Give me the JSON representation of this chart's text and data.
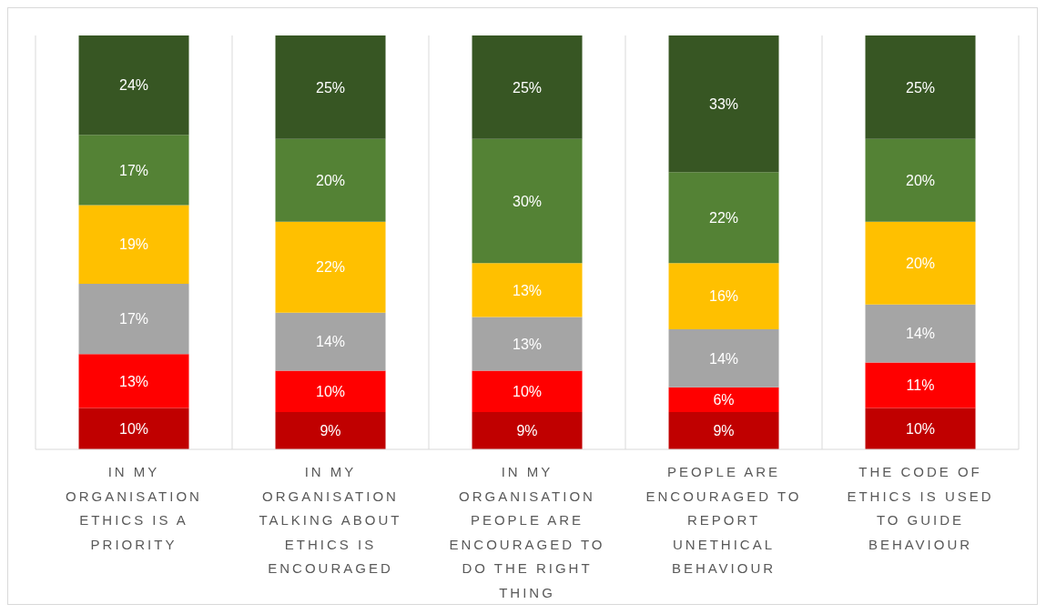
{
  "chart_data": {
    "type": "bar",
    "stacked": true,
    "grid": "x",
    "categories": [
      "IN MY ORGANISATION ETHICS IS A PRIORITY",
      "IN MY ORGANISATION TALKING ABOUT ETHICS IS ENCOURAGED",
      "IN MY ORGANISATION PEOPLE ARE ENCOURAGED TO DO THE RIGHT THING",
      "PEOPLE ARE ENCOURAGED TO REPORT UNETHICAL BEHAVIOUR",
      "THE CODE OF ETHICS IS USED TO GUIDE BEHAVIOUR"
    ],
    "series": [
      {
        "color": "#c00000",
        "values": [
          10,
          9,
          9,
          9,
          10
        ],
        "value_labels": [
          "10%",
          "9%",
          "9%",
          "9%",
          "10%"
        ]
      },
      {
        "color": "#ff0000",
        "values": [
          13,
          10,
          10,
          6,
          11
        ],
        "value_labels": [
          "13%",
          "10%",
          "10%",
          "6%",
          "11%"
        ]
      },
      {
        "color": "#a5a5a5",
        "values": [
          17,
          14,
          13,
          14,
          14
        ],
        "value_labels": [
          "17%",
          "14%",
          "13%",
          "14%",
          "14%"
        ]
      },
      {
        "color": "#ffc000",
        "values": [
          19,
          22,
          13,
          16,
          20
        ],
        "value_labels": [
          "19%",
          "22%",
          "13%",
          "16%",
          "20%"
        ]
      },
      {
        "color": "#548235",
        "values": [
          17,
          20,
          30,
          22,
          20
        ],
        "value_labels": [
          "17%",
          "20%",
          "30%",
          "22%",
          "20%"
        ]
      },
      {
        "color": "#375623",
        "values": [
          24,
          25,
          25,
          33,
          25
        ],
        "value_labels": [
          "24%",
          "25%",
          "25%",
          "33%",
          "25%"
        ]
      }
    ]
  }
}
